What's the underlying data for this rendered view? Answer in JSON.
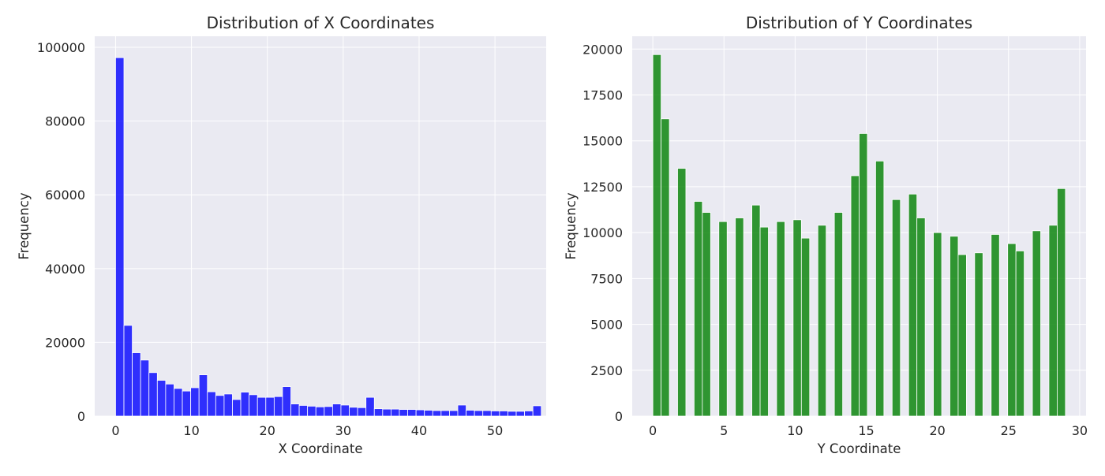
{
  "chart_data": [
    {
      "type": "bar",
      "title": "Distribution of X Coordinates",
      "xlabel": "X Coordinate",
      "ylabel": "Frequency",
      "xlim": [
        -2.75,
        56.75
      ],
      "ylim": [
        0,
        103000
      ],
      "xticks": [
        0,
        10,
        20,
        30,
        40,
        50
      ],
      "yticks": [
        0,
        20000,
        40000,
        60000,
        80000,
        100000
      ],
      "grid": true,
      "bar_color": "#0000ff",
      "bin_edges_start": 0,
      "bin_width": 1.1,
      "values": [
        97200,
        24600,
        17200,
        15200,
        11800,
        9700,
        8700,
        7500,
        6800,
        7700,
        11200,
        6600,
        5600,
        6000,
        4500,
        6500,
        5800,
        5100,
        5100,
        5300,
        8000,
        3300,
        2900,
        2700,
        2500,
        2600,
        3300,
        3000,
        2400,
        2300,
        5100,
        2000,
        1900,
        1900,
        1800,
        1800,
        1700,
        1600,
        1500,
        1500,
        1500,
        3000,
        1600,
        1500,
        1500,
        1400,
        1400,
        1300,
        1300,
        1400,
        2800
      ]
    },
    {
      "type": "bar",
      "title": "Distribution of Y Coordinates",
      "xlabel": "Y Coordinate",
      "ylabel": "Frequency",
      "xlim": [
        -1.45,
        30.45
      ],
      "ylim": [
        0,
        20700
      ],
      "xticks": [
        0,
        5,
        10,
        15,
        20,
        25,
        30
      ],
      "yticks": [
        0,
        2500,
        5000,
        7500,
        10000,
        12500,
        15000,
        17500,
        20000
      ],
      "grid": true,
      "bar_color": "#008000",
      "bin_edges_start": 0,
      "bin_width": 0.58,
      "bin_count": 50,
      "bars": [
        {
          "bin": 0,
          "value": 19700
        },
        {
          "bin": 1,
          "value": 16200
        },
        {
          "bin": 3,
          "value": 13500
        },
        {
          "bin": 5,
          "value": 11700
        },
        {
          "bin": 6,
          "value": 11100
        },
        {
          "bin": 8,
          "value": 10600
        },
        {
          "bin": 10,
          "value": 10800
        },
        {
          "bin": 12,
          "value": 11500
        },
        {
          "bin": 13,
          "value": 10300
        },
        {
          "bin": 15,
          "value": 10600
        },
        {
          "bin": 17,
          "value": 10700
        },
        {
          "bin": 18,
          "value": 9700
        },
        {
          "bin": 20,
          "value": 10400
        },
        {
          "bin": 22,
          "value": 11100
        },
        {
          "bin": 24,
          "value": 13100
        },
        {
          "bin": 25,
          "value": 15400
        },
        {
          "bin": 27,
          "value": 13900
        },
        {
          "bin": 29,
          "value": 11800
        },
        {
          "bin": 31,
          "value": 12100
        },
        {
          "bin": 32,
          "value": 10800
        },
        {
          "bin": 34,
          "value": 10000
        },
        {
          "bin": 36,
          "value": 9800
        },
        {
          "bin": 37,
          "value": 8800
        },
        {
          "bin": 39,
          "value": 8900
        },
        {
          "bin": 41,
          "value": 9900
        },
        {
          "bin": 43,
          "value": 9400
        },
        {
          "bin": 44,
          "value": 9000
        },
        {
          "bin": 46,
          "value": 10100
        },
        {
          "bin": 48,
          "value": 10400
        },
        {
          "bin": 49,
          "value": 12400
        }
      ]
    }
  ]
}
